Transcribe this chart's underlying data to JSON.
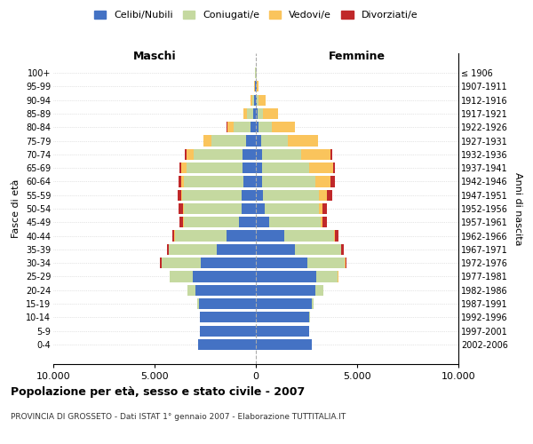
{
  "age_groups": [
    "100+",
    "95-99",
    "90-94",
    "85-89",
    "80-84",
    "75-79",
    "70-74",
    "65-69",
    "60-64",
    "55-59",
    "50-54",
    "45-49",
    "40-44",
    "35-39",
    "30-34",
    "25-29",
    "20-24",
    "15-19",
    "10-14",
    "5-9",
    "0-4"
  ],
  "birth_years": [
    "≤ 1906",
    "1907-1911",
    "1912-1916",
    "1917-1921",
    "1922-1926",
    "1927-1931",
    "1932-1936",
    "1937-1941",
    "1942-1946",
    "1947-1951",
    "1952-1956",
    "1957-1961",
    "1962-1966",
    "1967-1971",
    "1972-1976",
    "1977-1981",
    "1982-1986",
    "1987-1991",
    "1992-1996",
    "1997-2001",
    "2002-2006"
  ],
  "maschi": {
    "celibinubili": [
      15,
      30,
      80,
      120,
      250,
      500,
      650,
      650,
      600,
      680,
      720,
      820,
      1450,
      1950,
      2700,
      3100,
      3000,
      2800,
      2750,
      2750,
      2850
    ],
    "coniugati": [
      8,
      25,
      90,
      320,
      850,
      1700,
      2400,
      2750,
      2950,
      2950,
      2850,
      2750,
      2550,
      2350,
      1950,
      1150,
      380,
      90,
      8,
      3,
      3
    ],
    "vedovi": [
      4,
      25,
      90,
      180,
      320,
      380,
      380,
      280,
      140,
      70,
      45,
      25,
      15,
      12,
      8,
      4,
      4,
      2,
      0,
      0,
      0
    ],
    "divorziati": [
      1,
      2,
      4,
      4,
      8,
      25,
      70,
      110,
      140,
      180,
      190,
      170,
      110,
      90,
      70,
      18,
      8,
      2,
      0,
      0,
      0
    ]
  },
  "femmine": {
    "celibinubili": [
      15,
      25,
      60,
      80,
      120,
      250,
      300,
      300,
      300,
      350,
      450,
      650,
      1400,
      1950,
      2550,
      3000,
      2950,
      2750,
      2650,
      2650,
      2750
    ],
    "coniugate": [
      8,
      18,
      70,
      270,
      650,
      1350,
      1950,
      2350,
      2650,
      2750,
      2650,
      2550,
      2450,
      2250,
      1850,
      1050,
      380,
      90,
      8,
      3,
      3
    ],
    "vedove": [
      28,
      90,
      370,
      750,
      1150,
      1450,
      1450,
      1150,
      750,
      420,
      180,
      90,
      45,
      25,
      18,
      8,
      4,
      2,
      0,
      0,
      0
    ],
    "divorziate": [
      1,
      2,
      4,
      4,
      8,
      25,
      70,
      110,
      190,
      270,
      240,
      210,
      170,
      110,
      70,
      18,
      8,
      2,
      0,
      0,
      0
    ]
  },
  "colors": {
    "celibinubili": "#4472C4",
    "coniugati": "#C5D9A0",
    "vedovi": "#FAC45C",
    "divorziati": "#C0282A"
  },
  "xlim": 10000,
  "title": "Popolazione per età, sesso e stato civile - 2007",
  "subtitle": "PROVINCIA DI GROSSETO - Dati ISTAT 1° gennaio 2007 - Elaborazione TUTTITALIA.IT",
  "ylabel_left": "Fasce di età",
  "ylabel_right": "Anni di nascita",
  "xlabel_maschi": "Maschi",
  "xlabel_femmine": "Femmine",
  "legend_labels": [
    "Celibi/Nubili",
    "Coniugati/e",
    "Vedovi/e",
    "Divorziati/e"
  ],
  "tick_positions": [
    -10000,
    -5000,
    0,
    5000,
    10000
  ],
  "tick_labels": [
    "10.000",
    "5.000",
    "0",
    "5.000",
    "10.000"
  ]
}
